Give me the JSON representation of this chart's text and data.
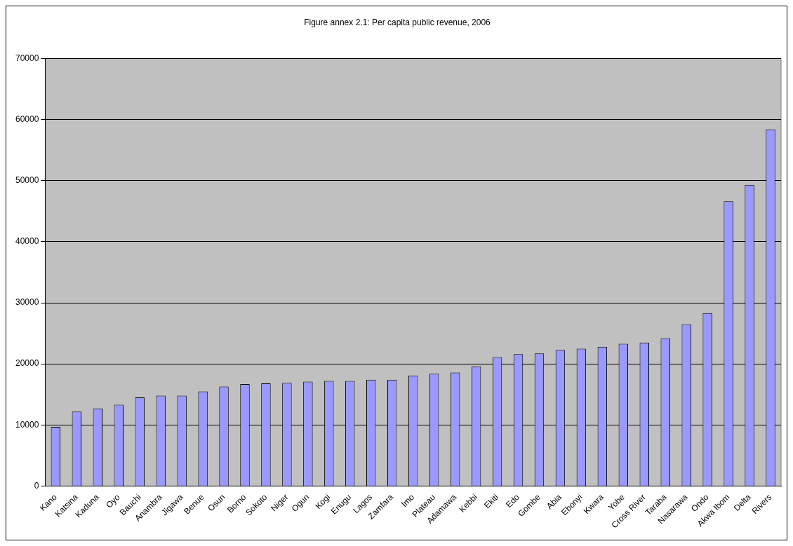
{
  "chart_data": {
    "type": "bar",
    "title": "Figure annex 2.1: Per capita public revenue, 2006",
    "categories": [
      "Kano",
      "Katsina",
      "Kaduna",
      "Oyo",
      "Bauchi",
      "Anambra",
      "Jigawa",
      "Benue",
      "Osun",
      "Borno",
      "Sokoto",
      "Niger",
      "Ogun",
      "Kogi",
      "Enugu",
      "Lagos",
      "Zamfara",
      "Imo",
      "Plateau",
      "Adamawa",
      "Kebbi",
      "Ekiti",
      "Edo",
      "Gombe",
      "Abia",
      "Ebonyi",
      "Kwara",
      "Yobe",
      "Cross River",
      "Taraba",
      "Nasarawa",
      "Ondo",
      "Akwa Ibom",
      "Delta",
      "Rivers"
    ],
    "values": [
      9700,
      12200,
      12700,
      13300,
      14500,
      14800,
      14800,
      15500,
      16300,
      16700,
      16800,
      16900,
      17100,
      17200,
      17200,
      17400,
      17400,
      18100,
      18400,
      18600,
      19600,
      21100,
      21600,
      21700,
      22300,
      22500,
      22800,
      23300,
      23500,
      24200,
      26500,
      28300,
      46600,
      49300,
      58400
    ],
    "color": "#9999ff",
    "ylim": [
      0,
      70000
    ],
    "yticks": [
      0,
      10000,
      20000,
      30000,
      40000,
      50000,
      60000,
      70000
    ],
    "grid": "y",
    "legend": false
  }
}
